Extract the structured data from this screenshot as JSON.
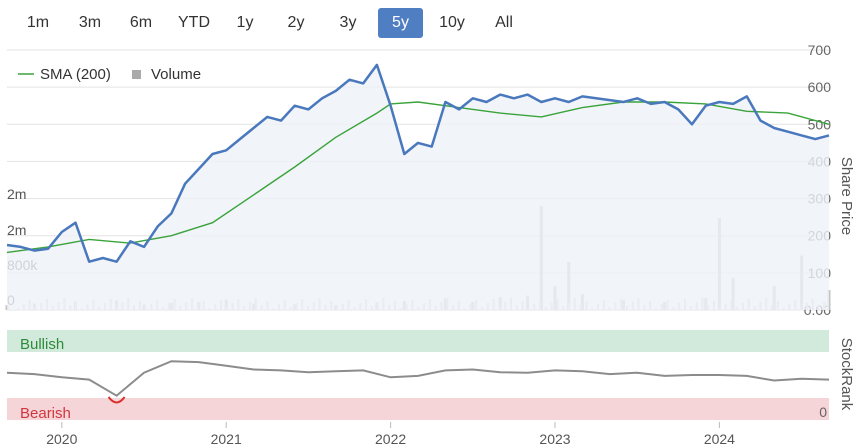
{
  "range_buttons": {
    "items": [
      "1m",
      "3m",
      "6m",
      "YTD",
      "1y",
      "2y",
      "3y",
      "5y",
      "10y",
      "All"
    ],
    "active": "5y"
  },
  "colors": {
    "price": "#4a78bd",
    "sma": "#3aa33a",
    "volume": "#c4c4c4",
    "stockrank": "#8c8c8c",
    "bullish_band": "#d2eadb",
    "bullish_text": "#2e8b3a",
    "bearish_band": "#f6d5d8",
    "bearish_text": "#d0363f",
    "bearish_line": "#d9302c",
    "active_button": "#4f7fc2",
    "price_area": "#eef1f8"
  },
  "chart_data": [
    {
      "type": "line",
      "title": "",
      "legend": [
        "SMA (200)",
        "Volume"
      ],
      "legend_placement": "top-left",
      "y_right_ticks": [
        "700",
        "600",
        "500",
        "400",
        "300",
        "200",
        "100",
        "0.00"
      ],
      "y_right_label": "Share Price",
      "ylim": [
        0,
        700
      ],
      "volume_ticks": [
        "2m",
        "2m",
        "800k",
        "0"
      ],
      "x_ticks": [
        "2020",
        "2021",
        "2022",
        "2023",
        "2024"
      ],
      "xlim": [
        "2019-09",
        "2024-09"
      ],
      "series": [
        {
          "name": "",
          "x": [
            "2019-09",
            "2019-10",
            "2019-11",
            "2019-12",
            "2020-01",
            "2020-02",
            "2020-03",
            "2020-04",
            "2020-05",
            "2020-06",
            "2020-07",
            "2020-08",
            "2020-09",
            "2020-10",
            "2020-11",
            "2020-12",
            "2021-01",
            "2021-02",
            "2021-03",
            "2021-04",
            "2021-05",
            "2021-06",
            "2021-07",
            "2021-08",
            "2021-09",
            "2021-10",
            "2021-11",
            "2021-12",
            "2022-01",
            "2022-02",
            "2022-03",
            "2022-04",
            "2022-05",
            "2022-06",
            "2022-07",
            "2022-08",
            "2022-09",
            "2022-10",
            "2022-11",
            "2022-12",
            "2023-01",
            "2023-02",
            "2023-03",
            "2023-04",
            "2023-05",
            "2023-06",
            "2023-07",
            "2023-08",
            "2023-09",
            "2023-10",
            "2023-11",
            "2023-12",
            "2024-01",
            "2024-02",
            "2024-03",
            "2024-04",
            "2024-05",
            "2024-06",
            "2024-07",
            "2024-08",
            "2024-09"
          ],
          "values": [
            175,
            170,
            160,
            165,
            210,
            235,
            130,
            140,
            130,
            185,
            170,
            225,
            260,
            340,
            380,
            420,
            430,
            460,
            490,
            520,
            510,
            550,
            540,
            570,
            590,
            620,
            610,
            660,
            550,
            420,
            450,
            440,
            560,
            540,
            570,
            560,
            580,
            570,
            580,
            560,
            570,
            560,
            575,
            570,
            565,
            560,
            570,
            555,
            560,
            540,
            500,
            550,
            560,
            555,
            575,
            510,
            490,
            480,
            470,
            460,
            470
          ]
        },
        {
          "name": "SMA (200)",
          "x": [
            "2019-09",
            "2019-12",
            "2020-03",
            "2020-06",
            "2020-09",
            "2020-12",
            "2021-03",
            "2021-06",
            "2021-09",
            "2021-12",
            "2022-01",
            "2022-03",
            "2022-06",
            "2022-09",
            "2022-12",
            "2023-03",
            "2023-06",
            "2023-09",
            "2023-12",
            "2024-03",
            "2024-06",
            "2024-09"
          ],
          "values": [
            155,
            170,
            190,
            180,
            200,
            235,
            310,
            385,
            465,
            530,
            555,
            560,
            545,
            530,
            520,
            545,
            560,
            560,
            555,
            535,
            530,
            500
          ]
        },
        {
          "name": "Volume",
          "x": [
            "2019-09",
            "2019-11",
            "2020-02",
            "2020-05",
            "2020-07",
            "2020-09",
            "2020-11",
            "2021-01",
            "2021-03",
            "2021-06",
            "2021-09",
            "2021-12",
            "2022-02",
            "2022-05",
            "2022-07",
            "2022-09",
            "2022-11",
            "2022-12",
            "2023-01",
            "2023-02",
            "2023-03",
            "2023-06",
            "2023-09",
            "2023-12",
            "2024-01",
            "2024-02",
            "2024-05",
            "2024-07",
            "2024-09"
          ],
          "values": [
            60000,
            80000,
            100000,
            120000,
            70000,
            90000,
            100000,
            130000,
            80000,
            70000,
            60000,
            90000,
            110000,
            140000,
            100000,
            160000,
            180000,
            1300000,
            300000,
            600000,
            200000,
            120000,
            100000,
            150000,
            1150000,
            400000,
            300000,
            680000,
            250000
          ]
        }
      ]
    },
    {
      "type": "line",
      "title": "",
      "y_right_label": "StockRank",
      "y_right_ticks": [
        "0"
      ],
      "bands": [
        "Bullish",
        "Bearish"
      ],
      "series": [
        {
          "name": "",
          "x": [
            "2019-09",
            "2019-11",
            "2020-01",
            "2020-03",
            "2020-05",
            "2020-07",
            "2020-09",
            "2020-11",
            "2021-01",
            "2021-03",
            "2021-05",
            "2021-07",
            "2021-09",
            "2021-11",
            "2022-01",
            "2022-03",
            "2022-05",
            "2022-07",
            "2022-09",
            "2022-11",
            "2023-01",
            "2023-03",
            "2023-05",
            "2023-07",
            "2023-09",
            "2023-11",
            "2024-01",
            "2024-03",
            "2024-05",
            "2024-07",
            "2024-09"
          ],
          "values": [
            55,
            52,
            45,
            40,
            5,
            55,
            80,
            78,
            70,
            62,
            60,
            56,
            58,
            60,
            45,
            48,
            60,
            62,
            56,
            55,
            60,
            58,
            52,
            55,
            48,
            50,
            50,
            48,
            38,
            42,
            40
          ]
        }
      ]
    }
  ]
}
